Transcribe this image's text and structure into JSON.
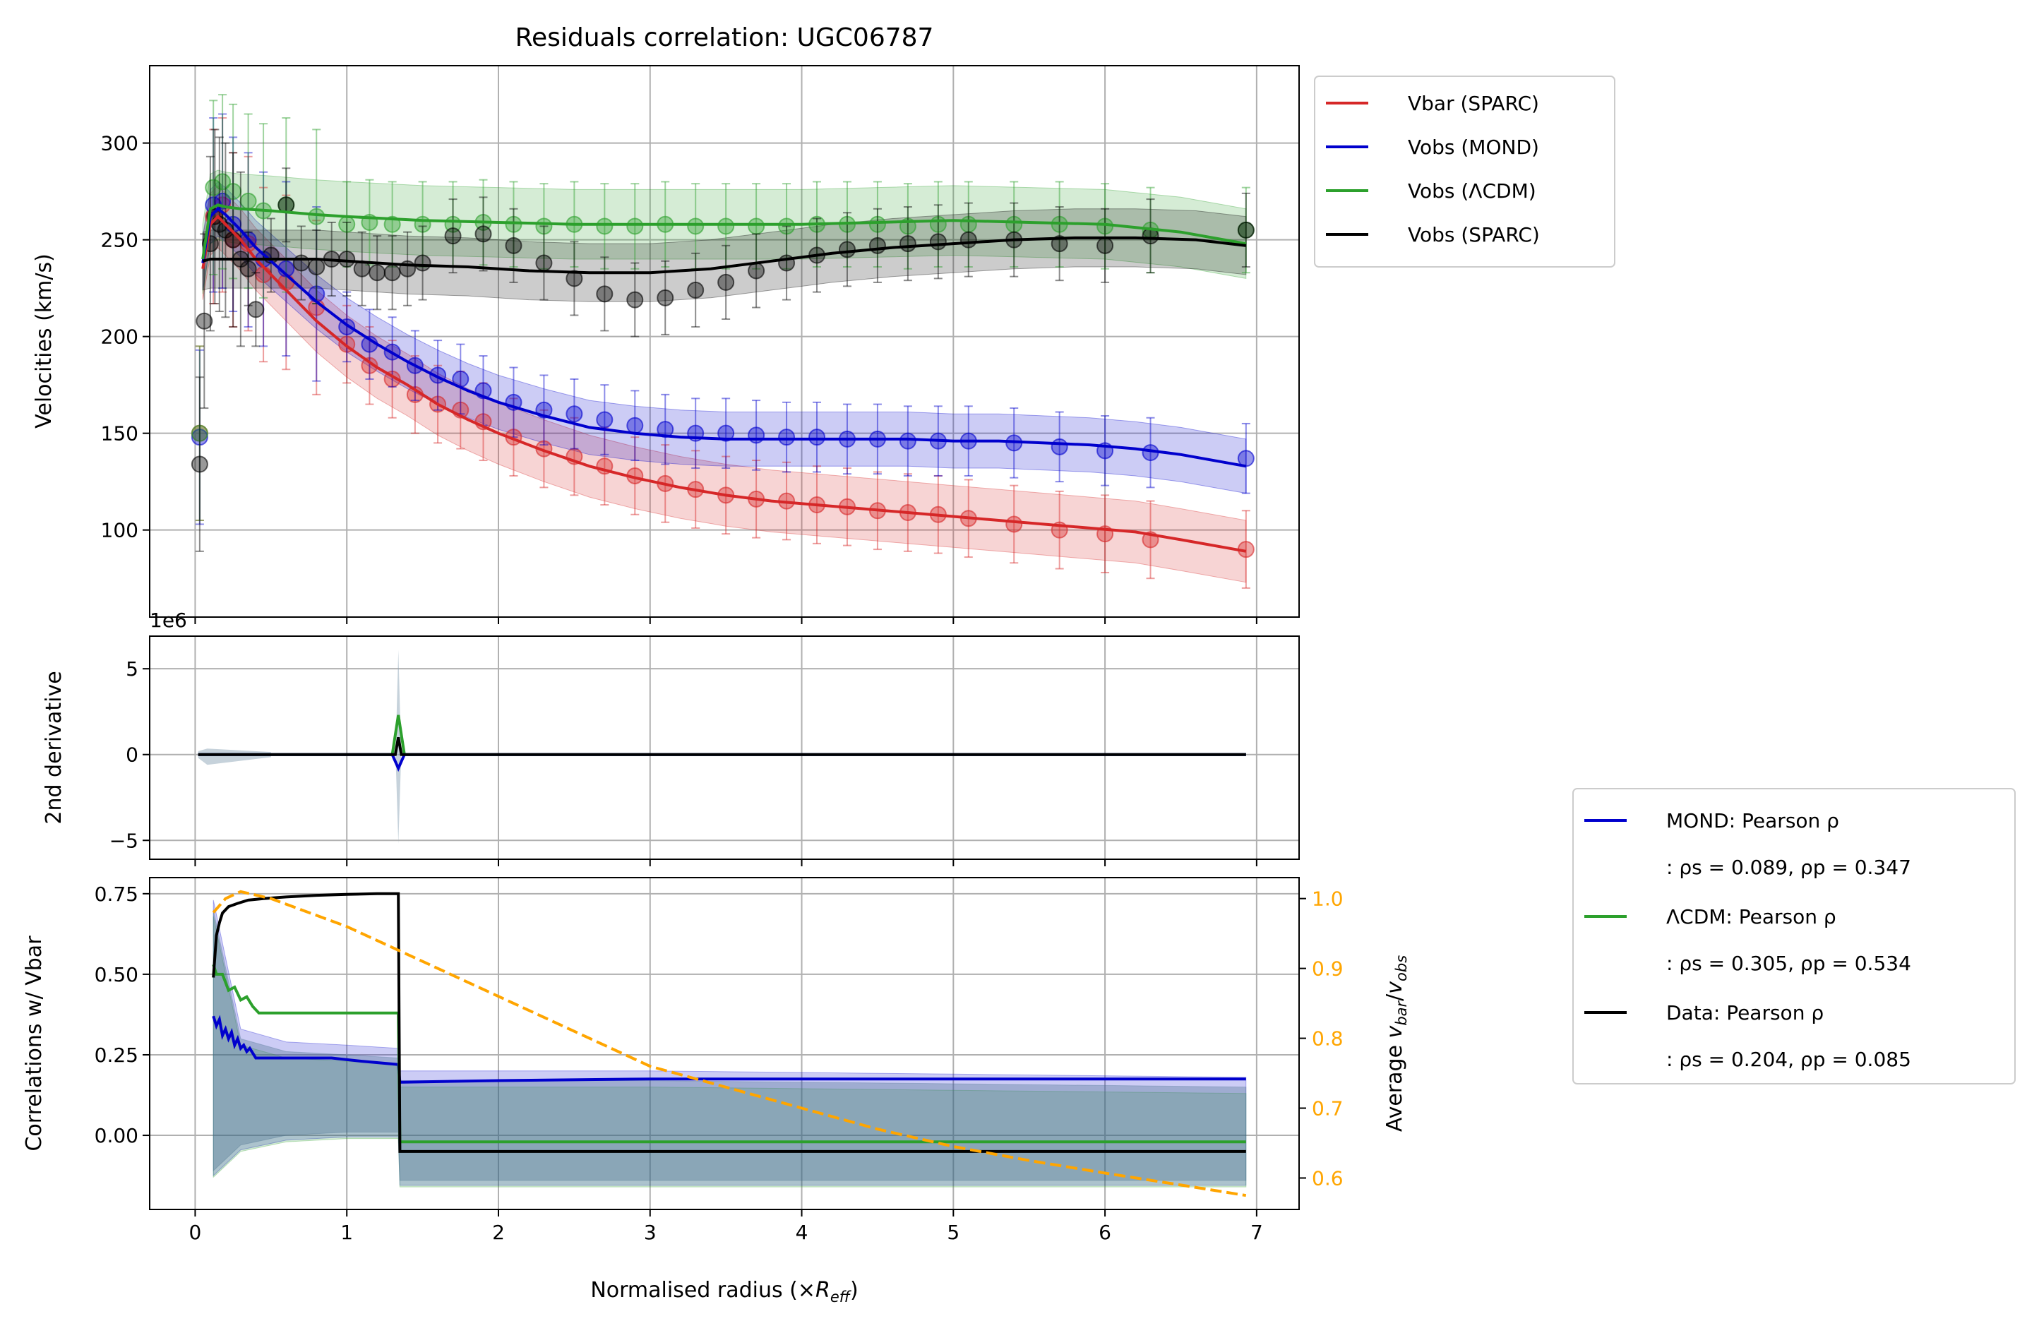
{
  "chart_data": [
    {
      "type": "scatter",
      "title": "Residuals correlation: UGC06787",
      "ylabel": "Velocities (km/s)",
      "xlim": [
        -0.3,
        7.28
      ],
      "ylim": [
        55,
        340
      ],
      "xticks": [
        0,
        1,
        2,
        3,
        4,
        5,
        6,
        7
      ],
      "yticks": [
        100,
        150,
        200,
        250,
        300
      ],
      "grid": true,
      "legend_position": "outside-top-right",
      "series": [
        {
          "name": "Vbar (SPARC)",
          "color": "#d62728",
          "band": 16,
          "x": [
            0.05,
            0.1,
            0.15,
            0.2,
            0.3,
            0.4,
            0.6,
            0.8,
            1.0,
            1.2,
            1.4,
            1.6,
            1.8,
            2.0,
            2.3,
            2.6,
            2.9,
            3.2,
            3.5,
            3.8,
            4.1,
            4.4,
            4.7,
            5.0,
            5.3,
            5.6,
            5.9,
            6.2,
            6.5,
            6.93
          ],
          "y": [
            235,
            258,
            262,
            258,
            250,
            240,
            224,
            208,
            195,
            184,
            175,
            165,
            157,
            150,
            141,
            133,
            127,
            122,
            118,
            115,
            113,
            111,
            109,
            107,
            105,
            103,
            101,
            99,
            95,
            89
          ],
          "points_x": [
            0.03,
            0.12,
            0.18,
            0.25,
            0.35,
            0.45,
            0.6,
            0.8,
            1.0,
            1.15,
            1.3,
            1.45,
            1.6,
            1.75,
            1.9,
            2.1,
            2.3,
            2.5,
            2.7,
            2.9,
            3.1,
            3.3,
            3.5,
            3.7,
            3.9,
            4.1,
            4.3,
            4.5,
            4.7,
            4.9,
            5.1,
            5.4,
            5.7,
            6.0,
            6.3,
            6.93
          ],
          "points_y": [
            150,
            262,
            268,
            250,
            248,
            232,
            228,
            215,
            196,
            185,
            178,
            170,
            165,
            162,
            156,
            148,
            142,
            138,
            133,
            128,
            124,
            121,
            118,
            116,
            115,
            113,
            112,
            110,
            109,
            108,
            106,
            103,
            100,
            98,
            95,
            90
          ]
        },
        {
          "name": "Vobs (MOND)",
          "color": "#0000cd",
          "band": 14,
          "x": [
            0.05,
            0.1,
            0.15,
            0.2,
            0.3,
            0.4,
            0.6,
            0.8,
            1.0,
            1.2,
            1.4,
            1.6,
            1.8,
            2.0,
            2.3,
            2.6,
            2.9,
            3.2,
            3.5,
            3.8,
            4.1,
            4.4,
            4.7,
            5.0,
            5.3,
            5.6,
            5.9,
            6.2,
            6.5,
            6.93
          ],
          "y": [
            238,
            262,
            266,
            263,
            255,
            246,
            232,
            218,
            206,
            196,
            187,
            179,
            172,
            166,
            159,
            153,
            150,
            148,
            147,
            147,
            147,
            147,
            147,
            146,
            146,
            145,
            144,
            142,
            139,
            133
          ],
          "points_x": [
            0.03,
            0.12,
            0.18,
            0.25,
            0.35,
            0.45,
            0.6,
            0.8,
            1.0,
            1.15,
            1.3,
            1.45,
            1.6,
            1.75,
            1.9,
            2.1,
            2.3,
            2.5,
            2.7,
            2.9,
            3.1,
            3.3,
            3.5,
            3.7,
            3.9,
            4.1,
            4.3,
            4.5,
            4.7,
            4.9,
            5.1,
            5.4,
            5.7,
            6.0,
            6.3,
            6.93
          ],
          "points_y": [
            148,
            268,
            270,
            258,
            250,
            240,
            235,
            222,
            205,
            196,
            192,
            185,
            180,
            178,
            172,
            166,
            162,
            160,
            157,
            154,
            152,
            150,
            150,
            149,
            148,
            148,
            147,
            147,
            146,
            146,
            146,
            145,
            143,
            141,
            140,
            137
          ]
        },
        {
          "name": "Vobs (ΛCDM)",
          "color": "#2ca02c",
          "band": 18,
          "x": [
            0.05,
            0.1,
            0.15,
            0.2,
            0.3,
            0.5,
            0.8,
            1.0,
            1.5,
            2.0,
            2.5,
            3.0,
            3.5,
            4.0,
            4.5,
            5.0,
            5.5,
            6.0,
            6.5,
            6.93
          ],
          "y": [
            240,
            266,
            268,
            267,
            266,
            265,
            263,
            262,
            260,
            259,
            258,
            258,
            258,
            258,
            259,
            260,
            259,
            258,
            254,
            248
          ],
          "points_x": [
            0.03,
            0.12,
            0.18,
            0.25,
            0.35,
            0.45,
            0.6,
            0.8,
            1.0,
            1.15,
            1.3,
            1.5,
            1.7,
            1.9,
            2.1,
            2.3,
            2.5,
            2.7,
            2.9,
            3.1,
            3.3,
            3.5,
            3.7,
            3.9,
            4.1,
            4.3,
            4.5,
            4.7,
            4.9,
            5.1,
            5.4,
            5.7,
            6.0,
            6.3,
            6.93
          ],
          "points_y": [
            150,
            277,
            280,
            275,
            270,
            265,
            268,
            262,
            258,
            259,
            258,
            258,
            258,
            259,
            258,
            257,
            258,
            257,
            257,
            258,
            257,
            257,
            257,
            257,
            258,
            258,
            258,
            257,
            258,
            258,
            258,
            258,
            257,
            255,
            255
          ]
        },
        {
          "name": "Vobs (SPARC)",
          "color": "#000000",
          "band": 15,
          "x": [
            0.05,
            0.1,
            0.2,
            0.4,
            0.6,
            0.8,
            1.0,
            1.2,
            1.4,
            1.8,
            2.2,
            2.6,
            3.0,
            3.4,
            3.8,
            4.2,
            4.6,
            5.0,
            5.4,
            5.8,
            6.2,
            6.6,
            6.93
          ],
          "y": [
            239,
            240,
            240,
            240,
            240,
            240,
            239,
            238,
            237,
            236,
            234,
            233,
            233,
            235,
            239,
            243,
            246,
            248,
            250,
            251,
            251,
            250,
            247
          ],
          "points_x": [
            0.03,
            0.06,
            0.1,
            0.13,
            0.16,
            0.2,
            0.25,
            0.3,
            0.35,
            0.4,
            0.5,
            0.6,
            0.7,
            0.8,
            0.9,
            1.0,
            1.1,
            1.2,
            1.3,
            1.4,
            1.5,
            1.7,
            1.9,
            2.1,
            2.3,
            2.5,
            2.7,
            2.9,
            3.1,
            3.3,
            3.5,
            3.7,
            3.9,
            4.1,
            4.3,
            4.5,
            4.7,
            4.9,
            5.1,
            5.4,
            5.7,
            6.0,
            6.3,
            6.93
          ],
          "points_y": [
            134,
            208,
            248,
            262,
            258,
            255,
            250,
            240,
            235,
            214,
            242,
            268,
            238,
            236,
            240,
            240,
            235,
            233,
            233,
            235,
            238,
            252,
            253,
            247,
            238,
            230,
            222,
            219,
            220,
            224,
            228,
            234,
            238,
            242,
            245,
            247,
            248,
            249,
            250,
            250,
            248,
            247,
            252,
            255
          ]
        }
      ]
    },
    {
      "type": "line",
      "ylabel": "2nd derivative",
      "offset_label": "1e6",
      "xlim": [
        -0.3,
        7.28
      ],
      "ylim": [
        -6.1,
        6.9
      ],
      "yticks": [
        -5,
        0,
        5
      ],
      "grid": true,
      "series": [
        {
          "color": "#2ca02c",
          "x": [
            0.02,
            1.3,
            1.34,
            1.38,
            6.93
          ],
          "y": [
            0,
            0,
            2.3,
            0,
            0
          ]
        },
        {
          "color": "#0000cd",
          "x": [
            0.02,
            1.3,
            1.34,
            1.38,
            6.93
          ],
          "y": [
            0,
            0,
            -0.8,
            0,
            0
          ]
        },
        {
          "color": "#000000",
          "x": [
            0.02,
            1.32,
            1.34,
            1.36,
            6.93
          ],
          "y": [
            0,
            0,
            1.0,
            0,
            0
          ]
        }
      ],
      "spike_x": 1.34,
      "spike_range": [
        -5.2,
        6.1
      ]
    },
    {
      "type": "line",
      "ylabel": "Correlations w/ Vbar",
      "xlabel": "Normalised radius (×R_eff)",
      "y2label": "Average v_bar/v_obs",
      "xlim": [
        -0.3,
        7.28
      ],
      "ylim": [
        -0.23,
        0.8
      ],
      "y2lim": [
        0.555,
        1.03
      ],
      "xticks": [
        0,
        1,
        2,
        3,
        4,
        5,
        6,
        7
      ],
      "yticks": [
        0.0,
        0.25,
        0.5,
        0.75
      ],
      "y2ticks": [
        0.6,
        0.7,
        0.8,
        0.9,
        1.0
      ],
      "grid": true,
      "legend_position": "outside-right",
      "series": [
        {
          "name": "MOND: Pearson ρ",
          "stats": ": ρs = 0.089, ρp = 0.347",
          "color": "#0000cd",
          "x": [
            0.12,
            0.14,
            0.16,
            0.18,
            0.2,
            0.22,
            0.24,
            0.26,
            0.28,
            0.3,
            0.32,
            0.34,
            0.36,
            0.4,
            0.5,
            0.7,
            0.9,
            1.1,
            1.34,
            1.35,
            2.0,
            3.0,
            6.93
          ],
          "y": [
            0.37,
            0.34,
            0.36,
            0.31,
            0.33,
            0.3,
            0.32,
            0.28,
            0.3,
            0.27,
            0.28,
            0.26,
            0.27,
            0.24,
            0.24,
            0.24,
            0.24,
            0.23,
            0.22,
            0.165,
            0.17,
            0.175,
            0.175
          ]
        },
        {
          "name": "ΛCDM: Pearson ρ",
          "stats": ": ρs = 0.305, ρp = 0.534",
          "color": "#2ca02c",
          "x": [
            0.12,
            0.14,
            0.18,
            0.22,
            0.26,
            0.3,
            0.34,
            0.38,
            0.42,
            0.5,
            0.7,
            1.0,
            1.34,
            1.35,
            6.93
          ],
          "y": [
            0.53,
            0.5,
            0.5,
            0.45,
            0.46,
            0.42,
            0.43,
            0.4,
            0.38,
            0.38,
            0.38,
            0.38,
            0.38,
            -0.02,
            -0.02
          ]
        },
        {
          "name": "Data: Pearson ρ",
          "stats": ": ρs = 0.204, ρp = 0.085",
          "color": "#000000",
          "x": [
            0.12,
            0.14,
            0.16,
            0.18,
            0.22,
            0.28,
            0.35,
            0.45,
            0.6,
            0.8,
            1.0,
            1.2,
            1.34,
            1.35,
            6.93
          ],
          "y": [
            0.49,
            0.62,
            0.66,
            0.69,
            0.71,
            0.72,
            0.73,
            0.735,
            0.74,
            0.745,
            0.748,
            0.75,
            0.75,
            -0.05,
            -0.05
          ]
        }
      ],
      "band_corr": {
        "x": [
          0.12,
          0.3,
          0.6,
          1.0,
          1.34,
          1.35,
          3.0,
          5.0,
          6.93
        ],
        "upper": [
          0.7,
          0.3,
          0.26,
          0.25,
          0.24,
          0.17,
          0.17,
          0.16,
          0.15
        ],
        "lower": [
          -0.11,
          -0.03,
          0.0,
          0.01,
          0.01,
          -0.14,
          -0.14,
          -0.14,
          -0.14
        ]
      },
      "average_ratio": {
        "color": "#ffa500",
        "x": [
          0.12,
          0.2,
          0.3,
          0.5,
          1.0,
          1.5,
          2.0,
          2.5,
          3.0,
          3.5,
          4.0,
          4.5,
          5.0,
          5.5,
          6.0,
          6.5,
          6.93
        ],
        "y": [
          0.98,
          1.0,
          1.01,
          1.0,
          0.96,
          0.91,
          0.86,
          0.81,
          0.76,
          0.73,
          0.7,
          0.67,
          0.645,
          0.625,
          0.607,
          0.59,
          0.575
        ]
      }
    }
  ],
  "text": {
    "title": "Residuals correlation: UGC06787",
    "ylabel_top": "Velocities (km/s)",
    "ylabel_mid": "2nd derivative",
    "offset_mid": "1e6",
    "ylabel_bot": "Correlations w/ Vbar",
    "xlabel_pre": "Normalised radius (×",
    "xlabel_R": "R",
    "xlabel_sub": "eff",
    "xlabel_post": ")",
    "y2label_pre": "Average ",
    "y2label_v1": "v",
    "y2label_s1": "bar",
    "y2label_slash": "/",
    "y2label_v2": "v",
    "y2label_s2": "obs"
  },
  "colors": {
    "vbar": "#d62728",
    "mond": "#0000cd",
    "lcdm": "#2ca02c",
    "sparc": "#000000",
    "ratio": "#ffa500",
    "grid": "#b0b0b0"
  }
}
